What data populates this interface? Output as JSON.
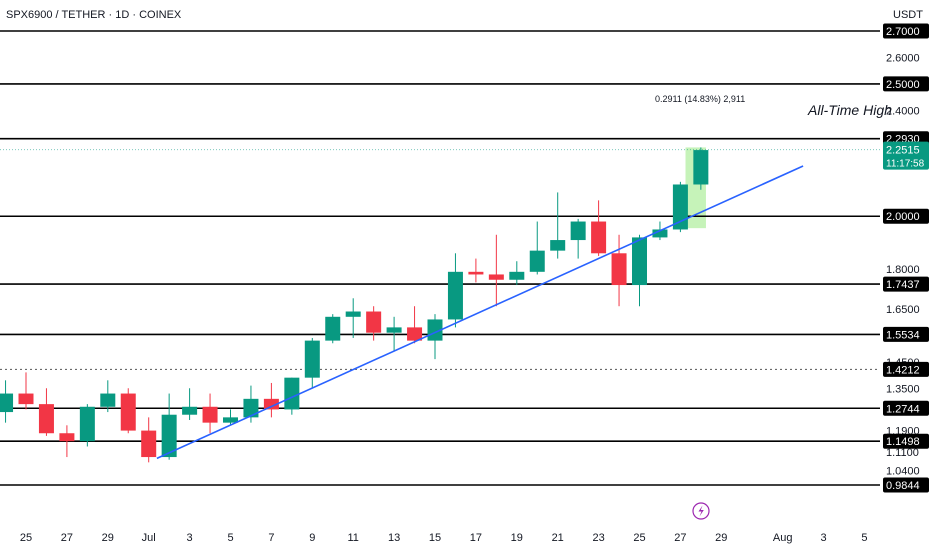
{
  "header": {
    "symbol_line": "SPX6900 / TETHER · 1D · COINEX",
    "currency": "USDT"
  },
  "chart_data": {
    "type": "candlestick",
    "y_range": [
      0.96,
      2.86
    ],
    "x_range": [
      24,
      36
    ],
    "y_ticks": [
      {
        "v": 2.7,
        "label": "2.7000"
      },
      {
        "v": 2.6,
        "label": "2.6000"
      },
      {
        "v": 2.4,
        "label": "2.4000"
      },
      {
        "v": 1.8,
        "label": "1.8000"
      },
      {
        "v": 1.65,
        "label": "1.6500"
      },
      {
        "v": 1.45,
        "label": "1.4500"
      },
      {
        "v": 1.35,
        "label": "1.3500"
      },
      {
        "v": 1.19,
        "label": "1.1900"
      },
      {
        "v": 1.11,
        "label": "1.1100"
      },
      {
        "v": 1.04,
        "label": "1.0400"
      }
    ],
    "levels": [
      {
        "v": 2.7,
        "label": "2.7000"
      },
      {
        "v": 2.5,
        "label": "2.5000"
      },
      {
        "v": 2.293,
        "label": "2.2930"
      },
      {
        "v": 2.0,
        "label": "2.0000"
      },
      {
        "v": 1.7437,
        "label": "1.7437"
      },
      {
        "v": 1.5534,
        "label": "1.5534"
      },
      {
        "v": 1.2744,
        "label": "1.2744"
      },
      {
        "v": 1.1498,
        "label": "1.1498"
      },
      {
        "v": 0.9844,
        "label": "0.9844"
      }
    ],
    "dotted_level": {
      "v": 1.4212,
      "label": "1.4212"
    },
    "current_price": {
      "v": 2.2515,
      "label": "2.2515",
      "countdown": "11:17:58"
    },
    "ath_label": "All-Time High",
    "measure_label": "0.2911 (14.83%) 2,911",
    "x_ticks": [
      {
        "d": 25,
        "label": "25"
      },
      {
        "d": 27,
        "label": "27"
      },
      {
        "d": 29,
        "label": "29"
      },
      {
        "d": 31,
        "label": "Jul"
      },
      {
        "d": 33,
        "label": "3"
      },
      {
        "d": 35,
        "label": "5"
      },
      {
        "d": 37,
        "label": "7"
      },
      {
        "d": 39,
        "label": "9"
      },
      {
        "d": 41,
        "label": "11"
      },
      {
        "d": 43,
        "label": "13"
      },
      {
        "d": 45,
        "label": "15"
      },
      {
        "d": 47,
        "label": "17"
      },
      {
        "d": 49,
        "label": "19"
      },
      {
        "d": 51,
        "label": "21"
      },
      {
        "d": 53,
        "label": "23"
      },
      {
        "d": 55,
        "label": "25"
      },
      {
        "d": 57,
        "label": "27"
      },
      {
        "d": 59,
        "label": "29"
      },
      {
        "d": 62,
        "label": "Aug"
      },
      {
        "d": 64,
        "label": "3"
      },
      {
        "d": 66,
        "label": "5"
      }
    ],
    "candles": [
      {
        "d": 24,
        "o": 1.26,
        "h": 1.38,
        "l": 1.22,
        "c": 1.33
      },
      {
        "d": 25,
        "o": 1.33,
        "h": 1.41,
        "l": 1.27,
        "c": 1.29
      },
      {
        "d": 26,
        "o": 1.29,
        "h": 1.35,
        "l": 1.17,
        "c": 1.18
      },
      {
        "d": 27,
        "o": 1.18,
        "h": 1.21,
        "l": 1.09,
        "c": 1.15
      },
      {
        "d": 28,
        "o": 1.15,
        "h": 1.29,
        "l": 1.13,
        "c": 1.28
      },
      {
        "d": 29,
        "o": 1.28,
        "h": 1.38,
        "l": 1.26,
        "c": 1.33
      },
      {
        "d": 30,
        "o": 1.33,
        "h": 1.35,
        "l": 1.18,
        "c": 1.19
      },
      {
        "d": 31,
        "o": 1.19,
        "h": 1.24,
        "l": 1.07,
        "c": 1.09
      },
      {
        "d": 32,
        "o": 1.09,
        "h": 1.33,
        "l": 1.08,
        "c": 1.25
      },
      {
        "d": 33,
        "o": 1.25,
        "h": 1.35,
        "l": 1.23,
        "c": 1.28
      },
      {
        "d": 34,
        "o": 1.28,
        "h": 1.33,
        "l": 1.18,
        "c": 1.22
      },
      {
        "d": 35,
        "o": 1.22,
        "h": 1.27,
        "l": 1.21,
        "c": 1.24
      },
      {
        "d": 36,
        "o": 1.24,
        "h": 1.36,
        "l": 1.22,
        "c": 1.31
      },
      {
        "d": 37,
        "o": 1.31,
        "h": 1.37,
        "l": 1.24,
        "c": 1.27
      },
      {
        "d": 38,
        "o": 1.27,
        "h": 1.39,
        "l": 1.25,
        "c": 1.39
      },
      {
        "d": 39,
        "o": 1.39,
        "h": 1.54,
        "l": 1.35,
        "c": 1.53
      },
      {
        "d": 40,
        "o": 1.53,
        "h": 1.63,
        "l": 1.52,
        "c": 1.62
      },
      {
        "d": 41,
        "o": 1.62,
        "h": 1.69,
        "l": 1.54,
        "c": 1.64
      },
      {
        "d": 42,
        "o": 1.64,
        "h": 1.66,
        "l": 1.53,
        "c": 1.56
      },
      {
        "d": 43,
        "o": 1.56,
        "h": 1.62,
        "l": 1.49,
        "c": 1.58
      },
      {
        "d": 44,
        "o": 1.58,
        "h": 1.66,
        "l": 1.52,
        "c": 1.53
      },
      {
        "d": 45,
        "o": 1.53,
        "h": 1.63,
        "l": 1.46,
        "c": 1.61
      },
      {
        "d": 46,
        "o": 1.61,
        "h": 1.86,
        "l": 1.58,
        "c": 1.79
      },
      {
        "d": 47,
        "o": 1.79,
        "h": 1.84,
        "l": 1.75,
        "c": 1.78
      },
      {
        "d": 48,
        "o": 1.78,
        "h": 1.93,
        "l": 1.66,
        "c": 1.76
      },
      {
        "d": 49,
        "o": 1.76,
        "h": 1.83,
        "l": 1.74,
        "c": 1.79
      },
      {
        "d": 50,
        "o": 1.79,
        "h": 1.98,
        "l": 1.78,
        "c": 1.87
      },
      {
        "d": 51,
        "o": 1.87,
        "h": 2.09,
        "l": 1.84,
        "c": 1.91
      },
      {
        "d": 52,
        "o": 1.91,
        "h": 1.99,
        "l": 1.84,
        "c": 1.98
      },
      {
        "d": 53,
        "o": 1.98,
        "h": 2.06,
        "l": 1.85,
        "c": 1.86
      },
      {
        "d": 54,
        "o": 1.86,
        "h": 1.93,
        "l": 1.66,
        "c": 1.74
      },
      {
        "d": 55,
        "o": 1.74,
        "h": 1.93,
        "l": 1.66,
        "c": 1.92
      },
      {
        "d": 56,
        "o": 1.92,
        "h": 1.98,
        "l": 1.91,
        "c": 1.95
      },
      {
        "d": 57,
        "o": 1.95,
        "h": 2.13,
        "l": 1.94,
        "c": 2.12
      },
      {
        "d": 58,
        "o": 2.12,
        "h": 2.26,
        "l": 2.1,
        "c": 2.25
      }
    ],
    "trendline": {
      "d1": 31.4,
      "v1": 1.085,
      "d2": 63.0,
      "v2": 2.19
    },
    "measure_box": {
      "d1": 57.25,
      "d2": 58.25,
      "v1": 1.955,
      "v2": 2.26
    },
    "colors": {
      "up": "#089981",
      "down": "#f23645",
      "trendline": "#2962ff",
      "level": "#000000",
      "measure": "#b8f0a8",
      "price_badge": "#089981"
    }
  }
}
